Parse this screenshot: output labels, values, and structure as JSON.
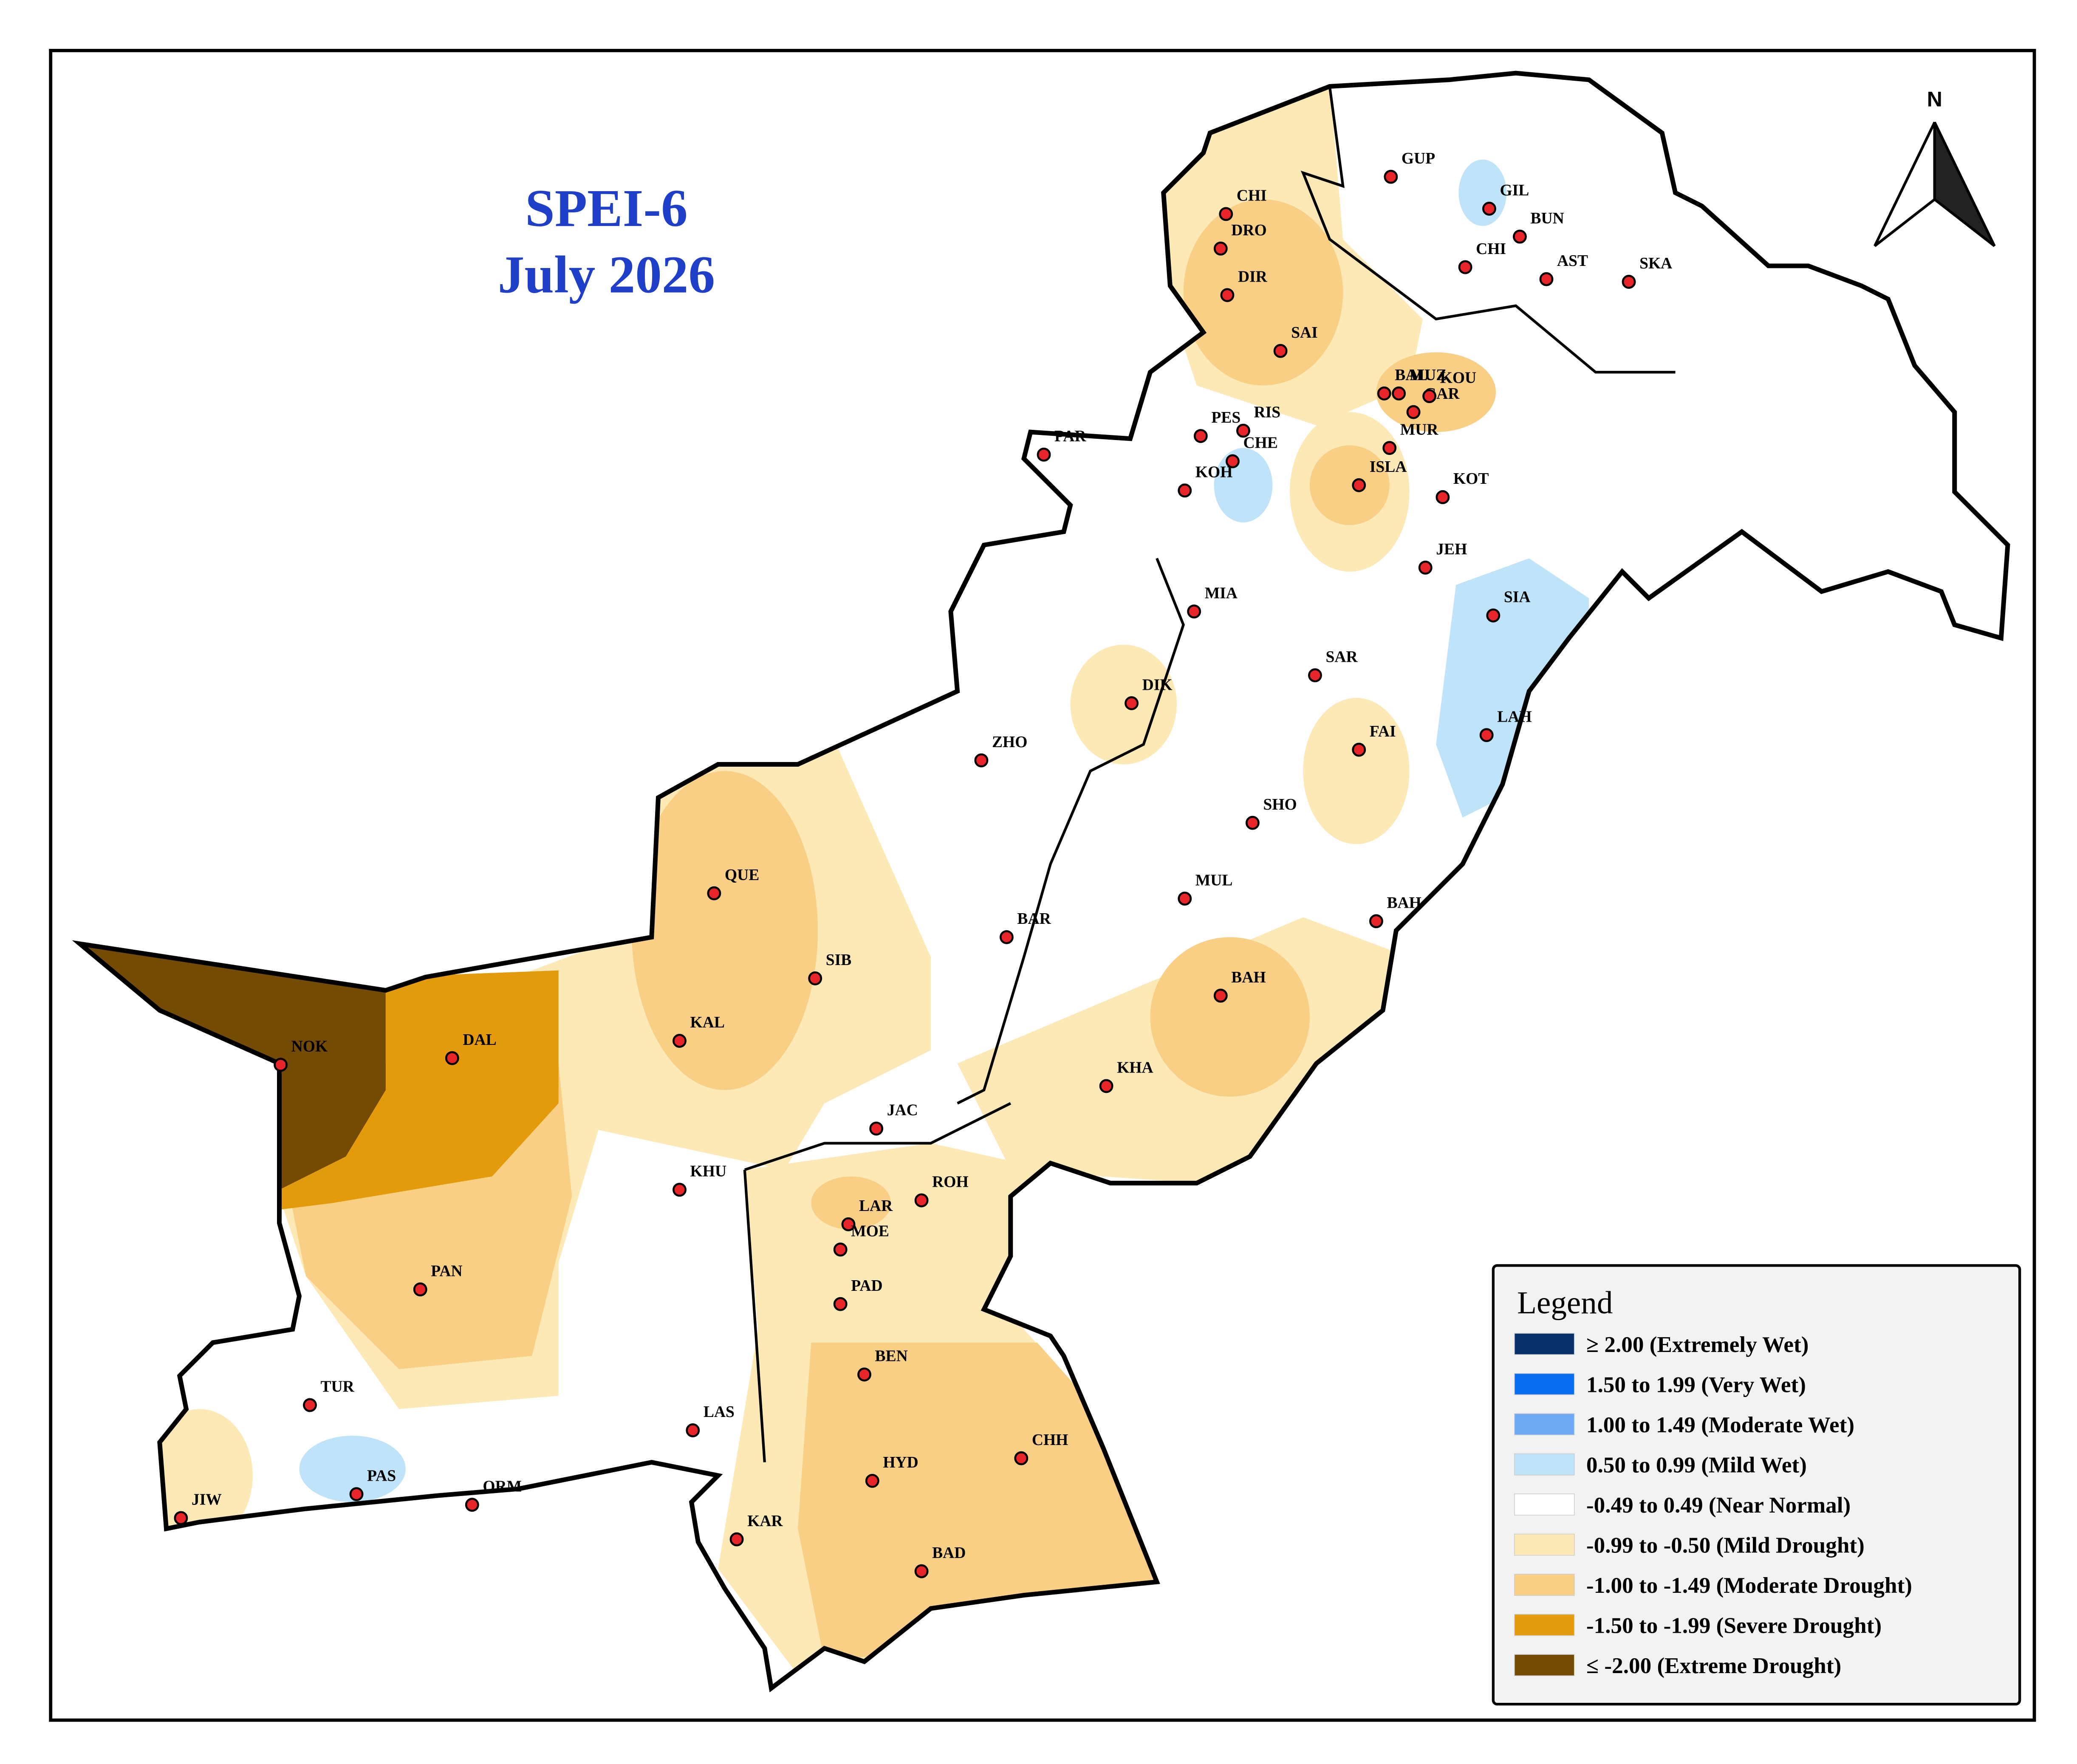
{
  "header": {
    "title": "SPEI-6",
    "subtitle": "July 2026"
  },
  "north": "N",
  "stations": [
    "GUP",
    "GIL",
    "BUN",
    "CHI",
    "AST",
    "SKA",
    "CHI",
    "DRO",
    "DIR",
    "SAI",
    "BAL",
    "MUZ",
    "GAR",
    "KOU",
    "MUR",
    "RIS",
    "PES",
    "CHE",
    "KOH",
    "ISLA",
    "PAR",
    "KOT",
    "JEH",
    "SIA",
    "MIA",
    "SAR",
    "DIK",
    "LAH",
    "FAI",
    "ZHO",
    "SHO",
    "QUE",
    "MUL",
    "BAH",
    "BAR",
    "SIB",
    "BAH",
    "KAL",
    "NOK",
    "DAL",
    "KHA",
    "JAC",
    "KHU",
    "ROH",
    "LAR",
    "MOE",
    "PAD",
    "PAN",
    "BEN",
    "TUR",
    "LAS",
    "CHH",
    "HYD",
    "PAS",
    "ORM",
    "JIW",
    "KAR",
    "BAD"
  ],
  "legend": {
    "title": "Legend",
    "entries": [
      {
        "label": "≥ 2.00 (Extremely Wet)",
        "color": "#08306b"
      },
      {
        "label": "1.50 to 1.99 (Very Wet)",
        "color": "#0a6cf0"
      },
      {
        "label": "1.00 to 1.49 (Moderate Wet)",
        "color": "#6fa8f5"
      },
      {
        "label": "0.50 to 0.99 (Mild Wet)",
        "color": "#bfe3f8"
      },
      {
        "label": "-0.49 to 0.49 (Near Normal)",
        "color": "#ffffff"
      },
      {
        "label": "-0.99 to -0.50 (Mild Drought)",
        "color": "#fde9b6"
      },
      {
        "label": "-1.00 to -1.49 (Moderate Drought)",
        "color": "#f9cf86"
      },
      {
        "label": "-1.50 to -1.99 (Severe Drought)",
        "color": "#e39b0b"
      },
      {
        "label": "≤ -2.00 (Extreme Drought)",
        "color": "#744b05"
      }
    ]
  }
}
